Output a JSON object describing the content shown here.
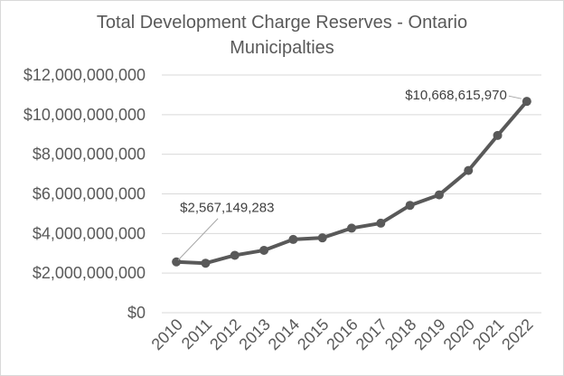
{
  "chart_data": {
    "type": "line",
    "title": "Total Development Charge Reserves - Ontario Municipalties",
    "title_lines": [
      "Total Development Charge Reserves - Ontario",
      "Municipalties"
    ],
    "xlabel": "",
    "ylabel": "",
    "categories": [
      "2010",
      "2011",
      "2012",
      "2013",
      "2014",
      "2015",
      "2016",
      "2017",
      "2018",
      "2019",
      "2020",
      "2021",
      "2022"
    ],
    "series": [
      {
        "name": "Total Development Charge Reserves",
        "values": [
          2567149283,
          2500000000,
          2900000000,
          3150000000,
          3700000000,
          3780000000,
          4270000000,
          4520000000,
          5420000000,
          5950000000,
          7180000000,
          8950000000,
          10668615970
        ]
      }
    ],
    "ylim": [
      0,
      12000000000
    ],
    "yticks": [
      0,
      2000000000,
      4000000000,
      6000000000,
      8000000000,
      10000000000,
      12000000000
    ],
    "ytick_labels": [
      "$0",
      "$2,000,000,000",
      "$4,000,000,000",
      "$6,000,000,000",
      "$8,000,000,000",
      "$10,000,000,000",
      "$12,000,000,000"
    ],
    "grid": true,
    "legend": "none",
    "annotations": [
      {
        "category": "2010",
        "text": "$2,567,149,283"
      },
      {
        "category": "2022",
        "text": "$10,668,615,970"
      }
    ],
    "colors": {
      "line": "#595959",
      "grid": "#d9d9d9",
      "text": "#595959",
      "label_text": "#404040",
      "leader": "#a6a6a6"
    }
  }
}
